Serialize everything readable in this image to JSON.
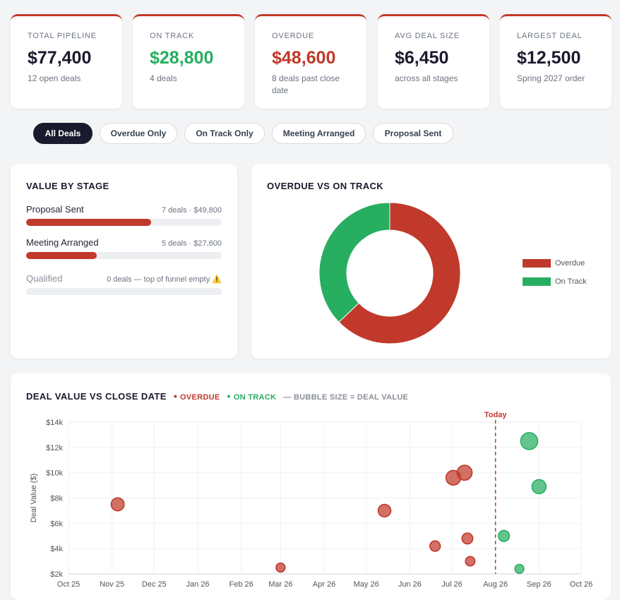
{
  "kpis": [
    {
      "label": "TOTAL PIPELINE",
      "value": "$77,400",
      "sub": "12 open deals",
      "color": "#1a1a2e"
    },
    {
      "label": "ON TRACK",
      "value": "$28,800",
      "sub": "4 deals",
      "color": "#27ae60"
    },
    {
      "label": "OVERDUE",
      "value": "$48,600",
      "sub": "8 deals past close date",
      "color": "#c0392b"
    },
    {
      "label": "AVG DEAL SIZE",
      "value": "$6,450",
      "sub": "across all stages",
      "color": "#1a1a2e"
    },
    {
      "label": "LARGEST DEAL",
      "value": "$12,500",
      "sub": "Spring 2027 order",
      "color": "#1a1a2e"
    }
  ],
  "filters": [
    {
      "label": "All Deals",
      "active": true
    },
    {
      "label": "Overdue Only",
      "active": false
    },
    {
      "label": "On Track Only",
      "active": false
    },
    {
      "label": "Meeting Arranged",
      "active": false
    },
    {
      "label": "Proposal Sent",
      "active": false
    }
  ],
  "stages": {
    "title": "VALUE BY STAGE",
    "items": [
      {
        "name": "Proposal Sent",
        "meta": "7 deals · $49,800",
        "fraction": 0.64
      },
      {
        "name": "Meeting Arranged",
        "meta": "5 deals · $27,600",
        "fraction": 0.36
      },
      {
        "name": "Qualified",
        "meta": "0 deals — top of funnel empty",
        "warning_icon": "⚠️",
        "fraction": 0
      }
    ]
  },
  "donut": {
    "title": "OVERDUE VS ON TRACK",
    "legend": [
      {
        "label": "Overdue",
        "color": "#c0392b"
      },
      {
        "label": "On Track",
        "color": "#27ae60"
      }
    ]
  },
  "scatter": {
    "title": "DEAL VALUE VS CLOSE DATE",
    "tag_overdue": "OVERDUE",
    "tag_ontrack": "ON TRACK",
    "tag_note": "— BUBBLE SIZE = DEAL VALUE",
    "today_label": "Today"
  },
  "chart_data": [
    {
      "type": "pie",
      "title": "OVERDUE VS ON TRACK",
      "categories": [
        "Overdue",
        "On Track"
      ],
      "values": [
        48600,
        28800
      ],
      "colors": [
        "#c0392b",
        "#27ae60"
      ],
      "legend": "right"
    },
    {
      "type": "scatter",
      "title": "DEAL VALUE VS CLOSE DATE",
      "ylabel": "Deal Value ($)",
      "xlabel": "",
      "x_ticks": [
        "Oct 25",
        "Nov 25",
        "Dec 25",
        "Jan 26",
        "Feb 26",
        "Mar 26",
        "Apr 26",
        "May 26",
        "Jun 26",
        "Jul 26",
        "Aug 26",
        "Sep 26",
        "Oct 26"
      ],
      "y_ticks": [
        "$2k",
        "$4k",
        "$6k",
        "$8k",
        "$10k",
        "$12k",
        "$14k"
      ],
      "xlim": [
        "2025-10-01",
        "2026-10-01"
      ],
      "ylim": [
        2000,
        14000
      ],
      "today": "2026-08-01",
      "grid": true,
      "series": [
        {
          "name": "OVERDUE",
          "color": "#c0392b",
          "points": [
            {
              "x": "2025-11-05",
              "y": 7500
            },
            {
              "x": "2026-03-01",
              "y": 2500
            },
            {
              "x": "2026-05-14",
              "y": 7000
            },
            {
              "x": "2026-06-19",
              "y": 4200
            },
            {
              "x": "2026-07-02",
              "y": 9600
            },
            {
              "x": "2026-07-10",
              "y": 10000
            },
            {
              "x": "2026-07-12",
              "y": 4800
            },
            {
              "x": "2026-07-14",
              "y": 3000
            }
          ]
        },
        {
          "name": "ON TRACK",
          "color": "#27ae60",
          "points": [
            {
              "x": "2026-08-07",
              "y": 5000
            },
            {
              "x": "2026-08-18",
              "y": 2400
            },
            {
              "x": "2026-08-25",
              "y": 12500
            },
            {
              "x": "2026-09-01",
              "y": 8900
            }
          ]
        }
      ]
    }
  ]
}
